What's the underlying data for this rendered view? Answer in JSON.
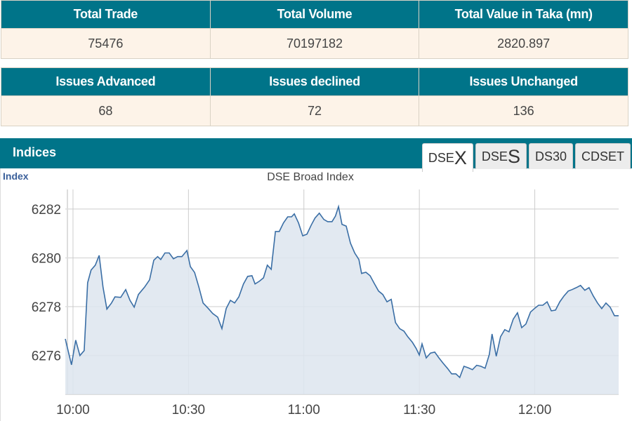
{
  "summary": {
    "headers": [
      "Total Trade",
      "Total Volume",
      "Total Value in Taka (mn)"
    ],
    "values": [
      "75476",
      "70197182",
      "2820.897"
    ]
  },
  "issues": {
    "headers": [
      "Issues Advanced",
      "Issues declined",
      "Issues Unchanged"
    ],
    "values": [
      "68",
      "72",
      "136"
    ]
  },
  "indices": {
    "title": "Indices",
    "tabs": [
      {
        "prefix": "DSE",
        "suffix": "X",
        "active": true
      },
      {
        "prefix": "DSE",
        "suffix": "S",
        "active": false
      },
      {
        "prefix": "DS30",
        "suffix": "",
        "active": false
      },
      {
        "prefix": "CDSET",
        "suffix": "",
        "active": false
      }
    ]
  },
  "colors": {
    "header": "#007489",
    "cell": "#fdf3e8",
    "line": "#3a6ea5",
    "fill": "#dde5ef"
  },
  "chart_data": {
    "type": "area",
    "title": "DSE Broad Index",
    "ylabel": "Index",
    "xlabel": "",
    "x_unit": "minutes since 10:00",
    "xlim": [
      -2,
      141.8
    ],
    "ylim": [
      6274.41,
      6282.8
    ],
    "yticks": [
      6276,
      6278,
      6280,
      6282
    ],
    "xticks": [
      {
        "x": 0,
        "label": "10:00"
      },
      {
        "x": 30,
        "label": "10:30"
      },
      {
        "x": 60,
        "label": "11:00"
      },
      {
        "x": 90,
        "label": "11:30"
      },
      {
        "x": 120,
        "label": "12:00"
      }
    ],
    "grid": true,
    "points": [
      [
        -2,
        6276.68
      ],
      [
        -0.4,
        6275.62
      ],
      [
        0.7,
        6276.63
      ],
      [
        1.8,
        6276.0
      ],
      [
        2.9,
        6276.2
      ],
      [
        3.8,
        6278.98
      ],
      [
        4.7,
        6279.5
      ],
      [
        5.8,
        6279.7
      ],
      [
        6.8,
        6280.1
      ],
      [
        7.8,
        6278.8
      ],
      [
        8.8,
        6277.9
      ],
      [
        10,
        6278.15
      ],
      [
        10.9,
        6278.4
      ],
      [
        12.4,
        6278.38
      ],
      [
        13.7,
        6278.7
      ],
      [
        14.8,
        6278.26
      ],
      [
        15.9,
        6277.98
      ],
      [
        17,
        6278.5
      ],
      [
        18.6,
        6278.8
      ],
      [
        19.9,
        6279.1
      ],
      [
        21,
        6279.9
      ],
      [
        22,
        6280.05
      ],
      [
        22.8,
        6279.93
      ],
      [
        23.9,
        6280.2
      ],
      [
        25,
        6280.2
      ],
      [
        26.1,
        6279.96
      ],
      [
        27.2,
        6280.05
      ],
      [
        28.3,
        6280.05
      ],
      [
        29.6,
        6280.3
      ],
      [
        30.5,
        6279.64
      ],
      [
        31.6,
        6279.4
      ],
      [
        32.7,
        6278.8
      ],
      [
        33.8,
        6278.15
      ],
      [
        35.2,
        6277.92
      ],
      [
        36.3,
        6277.72
      ],
      [
        37.6,
        6277.57
      ],
      [
        38.7,
        6277.1
      ],
      [
        39.8,
        6277.92
      ],
      [
        40.9,
        6278.26
      ],
      [
        42,
        6278.15
      ],
      [
        43.1,
        6278.4
      ],
      [
        44.3,
        6278.93
      ],
      [
        45.4,
        6279.24
      ],
      [
        46.5,
        6279.27
      ],
      [
        47.3,
        6278.93
      ],
      [
        48.4,
        6279.04
      ],
      [
        49.5,
        6279.18
      ],
      [
        50.5,
        6279.7
      ],
      [
        51.5,
        6279.53
      ],
      [
        52.6,
        6281.08
      ],
      [
        53.6,
        6281.08
      ],
      [
        54.7,
        6281.43
      ],
      [
        55.8,
        6281.68
      ],
      [
        56.8,
        6281.68
      ],
      [
        57.5,
        6281.8
      ],
      [
        58.6,
        6281.43
      ],
      [
        59.7,
        6280.9
      ],
      [
        60.8,
        6280.97
      ],
      [
        61.9,
        6281.34
      ],
      [
        62.9,
        6281.63
      ],
      [
        64,
        6281.83
      ],
      [
        65.2,
        6281.57
      ],
      [
        66.2,
        6281.48
      ],
      [
        67.3,
        6281.48
      ],
      [
        68.2,
        6281.71
      ],
      [
        69,
        6282.1
      ],
      [
        69.9,
        6281.37
      ],
      [
        71,
        6281.3
      ],
      [
        72.1,
        6280.6
      ],
      [
        73.2,
        6280.2
      ],
      [
        74.3,
        6279.93
      ],
      [
        75,
        6279.36
      ],
      [
        76.1,
        6279.41
      ],
      [
        77.2,
        6279.27
      ],
      [
        78.3,
        6278.95
      ],
      [
        79.4,
        6278.64
      ],
      [
        80.5,
        6278.5
      ],
      [
        81.6,
        6278.2
      ],
      [
        82.7,
        6278.3
      ],
      [
        83.8,
        6277.35
      ],
      [
        84.9,
        6277.1
      ],
      [
        86,
        6277.0
      ],
      [
        87,
        6276.77
      ],
      [
        88.2,
        6276.54
      ],
      [
        89.2,
        6276.28
      ],
      [
        90,
        6276.02
      ],
      [
        90.7,
        6276.48
      ],
      [
        91.8,
        6275.9
      ],
      [
        92.9,
        6276.1
      ],
      [
        94,
        6276.14
      ],
      [
        95.1,
        6275.9
      ],
      [
        96.2,
        6275.68
      ],
      [
        97.3,
        6275.48
      ],
      [
        98.4,
        6275.25
      ],
      [
        99.5,
        6275.25
      ],
      [
        100.5,
        6275.1
      ],
      [
        101.6,
        6275.56
      ],
      [
        102.7,
        6275.5
      ],
      [
        103.8,
        6275.42
      ],
      [
        104.9,
        6275.6
      ],
      [
        106,
        6275.56
      ],
      [
        107.1,
        6275.48
      ],
      [
        108.2,
        6276.05
      ],
      [
        108.9,
        6276.88
      ],
      [
        110,
        6275.97
      ],
      [
        111.1,
        6276.77
      ],
      [
        112.2,
        6277.06
      ],
      [
        113.3,
        6276.97
      ],
      [
        114.4,
        6277.49
      ],
      [
        115.5,
        6277.75
      ],
      [
        116.6,
        6277.14
      ],
      [
        117.7,
        6277.29
      ],
      [
        118.9,
        6277.78
      ],
      [
        119.9,
        6277.92
      ],
      [
        121,
        6278.06
      ],
      [
        122.1,
        6278.06
      ],
      [
        123.2,
        6278.2
      ],
      [
        124.3,
        6277.83
      ],
      [
        125.4,
        6277.86
      ],
      [
        126.5,
        6278.2
      ],
      [
        127.6,
        6278.44
      ],
      [
        128.7,
        6278.64
      ],
      [
        129.7,
        6278.7
      ],
      [
        130.8,
        6278.78
      ],
      [
        131.9,
        6278.87
      ],
      [
        133,
        6278.67
      ],
      [
        134.1,
        6278.78
      ],
      [
        135.2,
        6278.44
      ],
      [
        136.3,
        6278.15
      ],
      [
        137.4,
        6277.92
      ],
      [
        138.5,
        6278.15
      ],
      [
        139.6,
        6277.98
      ],
      [
        140.7,
        6277.63
      ],
      [
        141.8,
        6277.63
      ]
    ]
  }
}
